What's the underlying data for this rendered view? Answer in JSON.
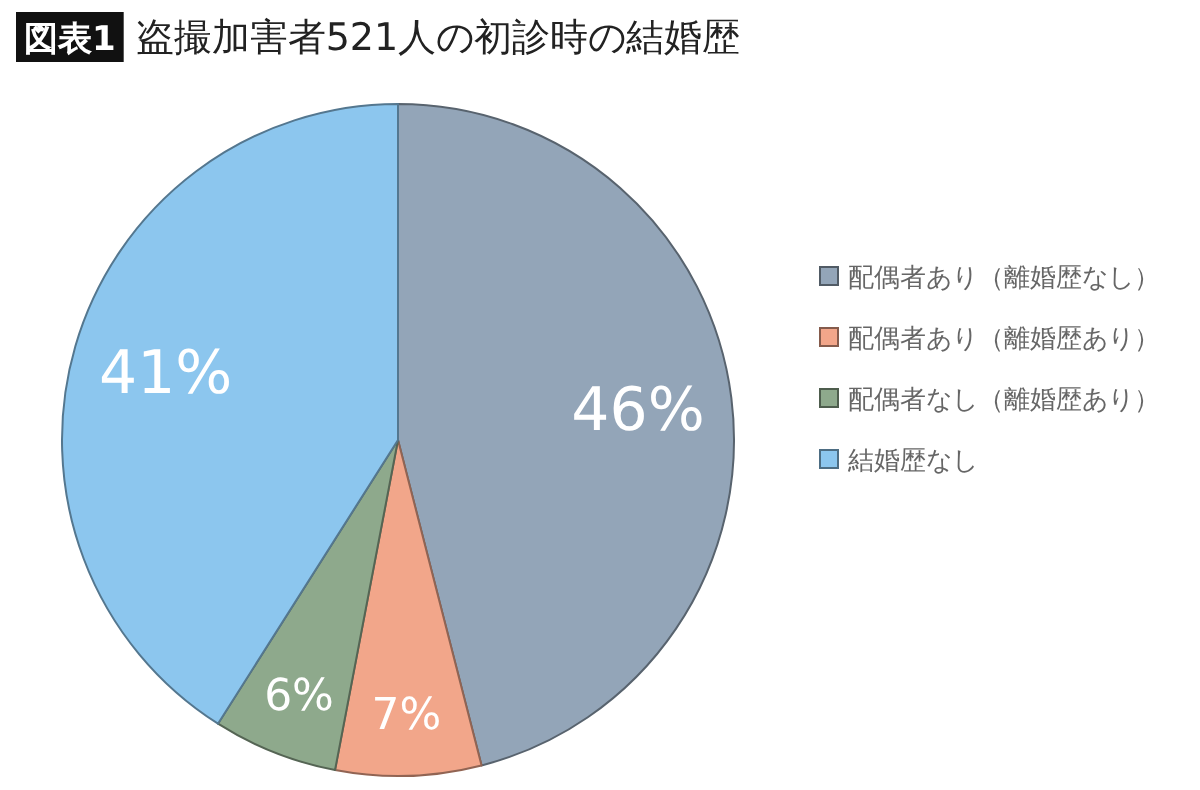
{
  "chart_data": {
    "type": "pie",
    "title": "盗撮加害者521人の初診時の結婚歴",
    "annotations": [
      "図表1"
    ],
    "categories": [
      "配偶者あり（離婚歴なし）",
      "配偶者あり（離婚歴あり）",
      "配偶者なし（離婚歴あり）",
      "結婚歴なし"
    ],
    "values": [
      46,
      7,
      6,
      41
    ],
    "colors": [
      "#93a5b8",
      "#f2a68a",
      "#8ea98c",
      "#8cc6ee"
    ],
    "value_labels": [
      "46%",
      "7%",
      "6%",
      "41%"
    ],
    "legend": "right"
  }
}
